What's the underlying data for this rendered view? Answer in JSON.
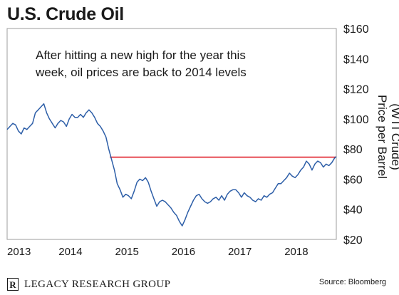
{
  "title": "U.S. Crude Oil",
  "annotation": "After hitting a new high for the year this week, oil prices are back to 2014 levels",
  "footer": {
    "logo_letter": "R",
    "org_name": "LEGACY RESEARCH GROUP",
    "source": "Source: Bloomberg"
  },
  "colors": {
    "line": "#2e5fa8",
    "reference": "#e0202a",
    "frame": "#9e9e9e"
  },
  "chart_data": {
    "type": "line",
    "title": "U.S. Crude Oil",
    "ylabel": "Price per Barrel (WTI Crude)",
    "y_axis_side": "right",
    "ylim": [
      20,
      160
    ],
    "yticks": [
      20,
      40,
      60,
      80,
      100,
      120,
      140,
      160
    ],
    "ytick_labels": [
      "$20",
      "$40",
      "$60",
      "$80",
      "$100",
      "$120",
      "$140",
      "$160"
    ],
    "xlim": [
      2013.0,
      2018.83
    ],
    "xticks": [
      2013,
      2014,
      2015,
      2016,
      2017,
      2018
    ],
    "xtick_labels": [
      "2013",
      "2014",
      "2015",
      "2016",
      "2017",
      "2018"
    ],
    "grid": false,
    "reference_line": {
      "y": 74.6,
      "x_start": 2014.82,
      "x_end": 2018.83
    },
    "series": [
      {
        "x": [
          2013.0,
          2013.05,
          2013.1,
          2013.15,
          2013.2,
          2013.25,
          2013.3,
          2013.35,
          2013.4,
          2013.45,
          2013.5,
          2013.55,
          2013.6,
          2013.65,
          2013.7,
          2013.75,
          2013.8,
          2013.85,
          2013.9,
          2013.95,
          2014.0,
          2014.05,
          2014.1,
          2014.15,
          2014.2,
          2014.25,
          2014.3,
          2014.35,
          2014.4,
          2014.45,
          2014.5,
          2014.55,
          2014.6,
          2014.65,
          2014.7,
          2014.75,
          2014.8,
          2014.85,
          2014.9,
          2014.95,
          2015.0,
          2015.05,
          2015.1,
          2015.15,
          2015.2,
          2015.25,
          2015.3,
          2015.35,
          2015.4,
          2015.45,
          2015.5,
          2015.55,
          2015.6,
          2015.65,
          2015.7,
          2015.75,
          2015.8,
          2015.85,
          2015.9,
          2015.95,
          2016.0,
          2016.05,
          2016.1,
          2016.15,
          2016.2,
          2016.25,
          2016.3,
          2016.35,
          2016.4,
          2016.45,
          2016.5,
          2016.55,
          2016.6,
          2016.65,
          2016.7,
          2016.75,
          2016.8,
          2016.85,
          2016.9,
          2016.95,
          2017.0,
          2017.05,
          2017.1,
          2017.15,
          2017.2,
          2017.25,
          2017.3,
          2017.35,
          2017.4,
          2017.45,
          2017.5,
          2017.55,
          2017.6,
          2017.65,
          2017.7,
          2017.75,
          2017.8,
          2017.85,
          2017.9,
          2017.95,
          2018.0,
          2018.05,
          2018.1,
          2018.15,
          2018.2,
          2018.25,
          2018.3,
          2018.35,
          2018.4,
          2018.45,
          2018.5,
          2018.55,
          2018.6,
          2018.65,
          2018.7,
          2018.75,
          2018.8,
          2018.83
        ],
        "y": [
          93,
          95,
          97,
          96,
          92,
          90,
          94,
          93,
          95,
          97,
          104,
          106,
          108,
          110,
          104,
          100,
          97,
          94,
          97,
          99,
          98,
          95,
          100,
          103,
          101,
          101,
          103,
          101,
          104,
          106,
          104,
          101,
          97,
          95,
          92,
          88,
          80,
          73,
          66,
          57,
          53,
          48,
          50,
          49,
          47,
          52,
          58,
          60,
          59,
          61,
          58,
          52,
          47,
          42,
          45,
          46,
          45,
          43,
          41,
          38,
          36,
          32,
          29,
          33,
          38,
          42,
          46,
          49,
          50,
          47,
          45,
          44,
          45,
          47,
          48,
          46,
          49,
          46,
          50,
          52,
          53,
          53,
          51,
          48,
          51,
          49,
          48,
          46,
          45,
          47,
          46,
          49,
          48,
          50,
          51,
          54,
          57,
          57,
          59,
          61,
          64,
          62,
          61,
          63,
          66,
          68,
          72,
          70,
          66,
          70,
          72,
          71,
          68,
          70,
          69,
          71,
          74,
          75
        ]
      }
    ]
  }
}
